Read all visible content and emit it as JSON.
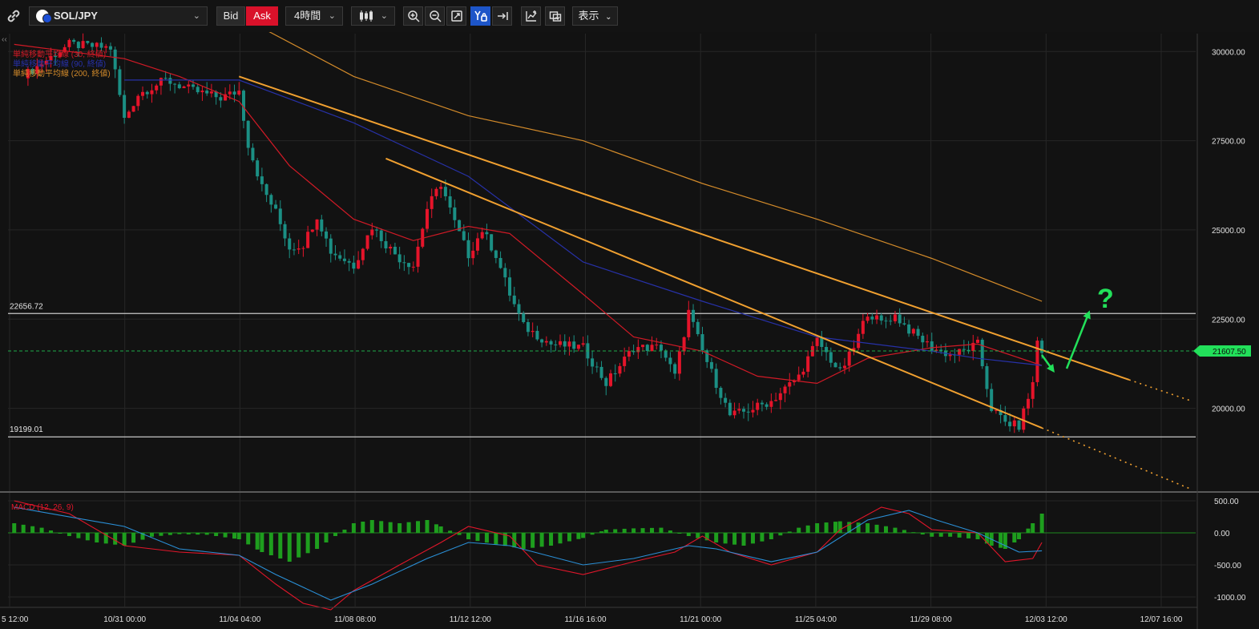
{
  "toolbar": {
    "symbol": "SOL/JPY",
    "bid_label": "Bid",
    "ask_label": "Ask",
    "timeframe": "4時間",
    "view_label": "表示",
    "icons": [
      "link-icon",
      "symbol-dropdown-chevron-icon",
      "candlestick-icon",
      "zoom-in-icon",
      "zoom-out-icon",
      "fit-icon",
      "auto-scale-icon",
      "scroll-to-end-icon",
      "indicator-icon",
      "compare-icon"
    ]
  },
  "colors": {
    "bull": "#e5142a",
    "bear": "#1b8f84",
    "ma30": "#d11a26",
    "ma90": "#2731a8",
    "ma200": "#d28a2a",
    "trendline": "#f0a030",
    "annotation": "#22e05a",
    "macd_line": "#e0162a",
    "signal_line": "#2a8fd6",
    "hist": "#1e9e1e",
    "price_label_bg": "#22e05a"
  },
  "chart_data": [
    {
      "type": "candlestick",
      "title": "SOL/JPY",
      "timeframe": "4時間",
      "x_tick_labels": [
        "5 12:00",
        "10/31 00:00",
        "11/04 04:00",
        "11/08 08:00",
        "11/12 12:00",
        "11/16 16:00",
        "11/21 00:00",
        "11/25 04:00",
        "11/29 08:00",
        "12/03 12:00",
        "12/07 16:00"
      ],
      "y_ticks": [
        20000,
        22500,
        25000,
        27500,
        30000
      ],
      "y_tick_labels": [
        "20000.00",
        "22500.00",
        "25000.00",
        "27500.00",
        "30000.00"
      ],
      "ylim": [
        17700,
        30500
      ],
      "legend": [
        {
          "label": "単純移動平均線 (30, 終値)",
          "color": "#d11a26"
        },
        {
          "label": "単純移動平均線 (90, 終値)",
          "color": "#2731a8"
        },
        {
          "label": "単純移動平均線 (200, 終値)",
          "color": "#d28a2a"
        }
      ],
      "legend_position": "top-left",
      "horizontal_levels": [
        {
          "label": "22656.72",
          "value": 22656.72
        },
        {
          "label": "19199.01",
          "value": 19199.01
        }
      ],
      "current_price": {
        "label": "21607.50",
        "value": 21607.5
      },
      "close_path": [
        [
          "10/27 12:00",
          29400
        ],
        [
          "10/29 00:00",
          30200
        ],
        [
          "10/30 12:00",
          30100
        ],
        [
          "10/31 00:00",
          28100
        ],
        [
          "10/31 12:00",
          28800
        ],
        [
          "11/01 12:00",
          29200
        ],
        [
          "11/02 12:00",
          28900
        ],
        [
          "11/03 12:00",
          28700
        ],
        [
          "11/04 04:00",
          28900
        ],
        [
          "11/04 12:00",
          27400
        ],
        [
          "11/05 00:00",
          26200
        ],
        [
          "11/05 12:00",
          25500
        ],
        [
          "11/06 00:00",
          24500
        ],
        [
          "11/06 12:00",
          24600
        ],
        [
          "11/07 00:00",
          25400
        ],
        [
          "11/07 12:00",
          24400
        ],
        [
          "11/08 08:00",
          24000
        ],
        [
          "11/09 00:00",
          25100
        ],
        [
          "11/09 12:00",
          24600
        ],
        [
          "11/10 00:00",
          24200
        ],
        [
          "11/10 12:00",
          24000
        ],
        [
          "11/11 00:00",
          25600
        ],
        [
          "11/11 12:00",
          26300
        ],
        [
          "11/12 00:00",
          25200
        ],
        [
          "11/12 12:00",
          24300
        ],
        [
          "11/13 00:00",
          25000
        ],
        [
          "11/13 12:00",
          24300
        ],
        [
          "11/14 00:00",
          23200
        ],
        [
          "11/14 12:00",
          22300
        ],
        [
          "11/15 12:00",
          21800
        ],
        [
          "11/16 16:00",
          21700
        ],
        [
          "11/17 12:00",
          20700
        ],
        [
          "11/18 12:00",
          21700
        ],
        [
          "11/19 12:00",
          21700
        ],
        [
          "11/20 00:00",
          20900
        ],
        [
          "11/20 12:00",
          22700
        ],
        [
          "11/21 00:00",
          21600
        ],
        [
          "11/21 12:00",
          20700
        ],
        [
          "11/22 00:00",
          19800
        ],
        [
          "11/22 12:00",
          19900
        ],
        [
          "11/23 12:00",
          20200
        ],
        [
          "11/24 12:00",
          20900
        ],
        [
          "11/25 04:00",
          21900
        ],
        [
          "11/26 00:00",
          21000
        ],
        [
          "11/26 12:00",
          21700
        ],
        [
          "11/27 00:00",
          22700
        ],
        [
          "11/27 12:00",
          22400
        ],
        [
          "11/28 00:00",
          22600
        ],
        [
          "11/28 12:00",
          22200
        ],
        [
          "11/29 08:00",
          21700
        ],
        [
          "11/30 00:00",
          21500
        ],
        [
          "11/30 12:00",
          21600
        ],
        [
          "12/01 00:00",
          21800
        ],
        [
          "12/01 12:00",
          20000
        ],
        [
          "12/02 00:00",
          19600
        ],
        [
          "12/02 12:00",
          19500
        ],
        [
          "12/03 00:00",
          20700
        ],
        [
          "12/03 04:00",
          21900
        ],
        [
          "12/03 08:00",
          21607.5
        ]
      ],
      "series": [
        {
          "name": "単純移動平均線 (30, 終値)",
          "points": [
            [
              "10/27 00:00",
              30200
            ],
            [
              "10/31 00:00",
              29800
            ],
            [
              "11/02 00:00",
              29300
            ],
            [
              "11/04 04:00",
              28600
            ],
            [
              "11/06 00:00",
              26800
            ],
            [
              "11/08 08:00",
              25300
            ],
            [
              "11/10 12:00",
              24700
            ],
            [
              "11/12 12:00",
              25100
            ],
            [
              "11/14 00:00",
              24900
            ],
            [
              "11/16 16:00",
              23200
            ],
            [
              "11/18 12:00",
              22000
            ],
            [
              "11/21 00:00",
              21600
            ],
            [
              "11/23 00:00",
              20900
            ],
            [
              "11/25 04:00",
              20700
            ],
            [
              "11/27 00:00",
              21400
            ],
            [
              "11/29 08:00",
              21700
            ],
            [
              "12/01 00:00",
              21800
            ],
            [
              "12/03 08:00",
              21200
            ]
          ]
        },
        {
          "name": "単純移動平均線 (90, 終値)",
          "points": [
            [
              "10/31 00:00",
              29200
            ],
            [
              "11/04 04:00",
              29200
            ],
            [
              "11/08 08:00",
              28000
            ],
            [
              "11/12 12:00",
              26500
            ],
            [
              "11/16 16:00",
              24100
            ],
            [
              "11/21 00:00",
              23000
            ],
            [
              "11/25 04:00",
              22000
            ],
            [
              "11/29 08:00",
              21600
            ],
            [
              "12/01 00:00",
              21400
            ],
            [
              "12/03 08:00",
              21200
            ]
          ]
        },
        {
          "name": "単純移動平均線 (200, 終値)",
          "points": [
            [
              "11/04 04:00",
              31000
            ],
            [
              "11/08 08:00",
              29300
            ],
            [
              "11/12 12:00",
              28200
            ],
            [
              "11/16 16:00",
              27500
            ],
            [
              "11/21 00:00",
              26300
            ],
            [
              "11/25 04:00",
              25300
            ],
            [
              "11/29 08:00",
              24200
            ],
            [
              "12/03 08:00",
              23000
            ]
          ]
        }
      ],
      "trendlines": [
        {
          "from": [
            "11/04 04:00",
            29300
          ],
          "to": [
            "12/06 12:00",
            20800
          ],
          "extended": true
        },
        {
          "from": [
            "11/09 12:00",
            27000
          ],
          "to": [
            "12/03 08:00",
            19450
          ],
          "extended": true
        }
      ],
      "annotation": {
        "text": "?",
        "arrows": 2
      }
    },
    {
      "type": "line",
      "title": "MACD (12, 26, 9)",
      "y_ticks": [
        500,
        0,
        -500,
        -1000
      ],
      "y_tick_labels": [
        "500.00",
        "0.00",
        "-500.00",
        "-1000.00"
      ],
      "ylim": [
        -1150,
        600
      ],
      "series": [
        {
          "name": "MACD",
          "points": [
            [
              "10/27 00:00",
              500
            ],
            [
              "10/29 00:00",
              300
            ],
            [
              "10/31 00:00",
              -200
            ],
            [
              "11/02 00:00",
              -300
            ],
            [
              "11/04 04:00",
              -350
            ],
            [
              "11/05 12:00",
              -800
            ],
            [
              "11/06 12:00",
              -1100
            ],
            [
              "11/07 12:00",
              -1200
            ],
            [
              "11/08 08:00",
              -900
            ],
            [
              "11/10 00:00",
              -500
            ],
            [
              "11/11 12:00",
              -150
            ],
            [
              "11/12 12:00",
              100
            ],
            [
              "11/14 00:00",
              -50
            ],
            [
              "11/15 00:00",
              -500
            ],
            [
              "11/16 16:00",
              -650
            ],
            [
              "11/18 12:00",
              -450
            ],
            [
              "11/20 00:00",
              -300
            ],
            [
              "11/21 00:00",
              -50
            ],
            [
              "11/22 00:00",
              -300
            ],
            [
              "11/23 12:00",
              -500
            ],
            [
              "11/25 04:00",
              -300
            ],
            [
              "11/26 00:00",
              50
            ],
            [
              "11/27 12:00",
              400
            ],
            [
              "11/28 12:00",
              300
            ],
            [
              "11/29 08:00",
              50
            ],
            [
              "12/01 00:00",
              0
            ],
            [
              "12/02 00:00",
              -450
            ],
            [
              "12/03 00:00",
              -400
            ],
            [
              "12/03 08:00",
              -150
            ]
          ]
        },
        {
          "name": "Signal",
          "points": [
            [
              "10/27 00:00",
              400
            ],
            [
              "10/31 00:00",
              100
            ],
            [
              "11/02 00:00",
              -250
            ],
            [
              "11/04 04:00",
              -350
            ],
            [
              "11/05 12:00",
              -650
            ],
            [
              "11/07 12:00",
              -1050
            ],
            [
              "11/09 00:00",
              -800
            ],
            [
              "11/11 00:00",
              -400
            ],
            [
              "11/12 12:00",
              -150
            ],
            [
              "11/14 00:00",
              -200
            ],
            [
              "11/16 16:00",
              -500
            ],
            [
              "11/18 12:00",
              -400
            ],
            [
              "11/20 12:00",
              -200
            ],
            [
              "11/21 12:00",
              -250
            ],
            [
              "11/23 12:00",
              -450
            ],
            [
              "11/25 04:00",
              -300
            ],
            [
              "11/27 00:00",
              200
            ],
            [
              "11/28 12:00",
              350
            ],
            [
              "11/29 12:00",
              200
            ],
            [
              "12/01 00:00",
              0
            ],
            [
              "12/02 12:00",
              -300
            ],
            [
              "12/03 08:00",
              -280
            ]
          ]
        }
      ],
      "histogram": [
        [
          "10/27 00:00",
          150
        ],
        [
          "10/28 00:00",
          80
        ],
        [
          "10/29 00:00",
          -50
        ],
        [
          "10/30 00:00",
          -150
        ],
        [
          "10/31 00:00",
          -200
        ],
        [
          "11/01 00:00",
          -60
        ],
        [
          "11/02 00:00",
          -20
        ],
        [
          "11/03 00:00",
          -30
        ],
        [
          "11/04 04:00",
          -100
        ],
        [
          "11/05 00:00",
          -300
        ],
        [
          "11/06 00:00",
          -450
        ],
        [
          "11/07 00:00",
          -250
        ],
        [
          "11/08 08:00",
          150
        ],
        [
          "11/09 00:00",
          200
        ],
        [
          "11/10 00:00",
          150
        ],
        [
          "11/11 00:00",
          200
        ],
        [
          "11/11 12:00",
          100
        ],
        [
          "11/12 12:00",
          -100
        ],
        [
          "11/13 12:00",
          -180
        ],
        [
          "11/14 12:00",
          -250
        ],
        [
          "11/15 12:00",
          -200
        ],
        [
          "11/16 16:00",
          -80
        ],
        [
          "11/17 12:00",
          50
        ],
        [
          "11/18 12:00",
          70
        ],
        [
          "11/19 12:00",
          80
        ],
        [
          "11/20 12:00",
          -50
        ],
        [
          "11/21 12:00",
          -150
        ],
        [
          "11/22 12:00",
          -200
        ],
        [
          "11/23 12:00",
          -100
        ],
        [
          "11/24 12:00",
          80
        ],
        [
          "11/25 04:00",
          150
        ],
        [
          "11/26 00:00",
          180
        ],
        [
          "11/27 00:00",
          150
        ],
        [
          "11/28 00:00",
          80
        ],
        [
          "11/29 08:00",
          -60
        ],
        [
          "11/30 00:00",
          -60
        ],
        [
          "12/01 00:00",
          -100
        ],
        [
          "12/01 12:00",
          -200
        ],
        [
          "12/02 00:00",
          -250
        ],
        [
          "12/02 12:00",
          -100
        ],
        [
          "12/03 00:00",
          150
        ],
        [
          "12/03 08:00",
          300
        ]
      ],
      "legend_position": "top-left"
    }
  ]
}
